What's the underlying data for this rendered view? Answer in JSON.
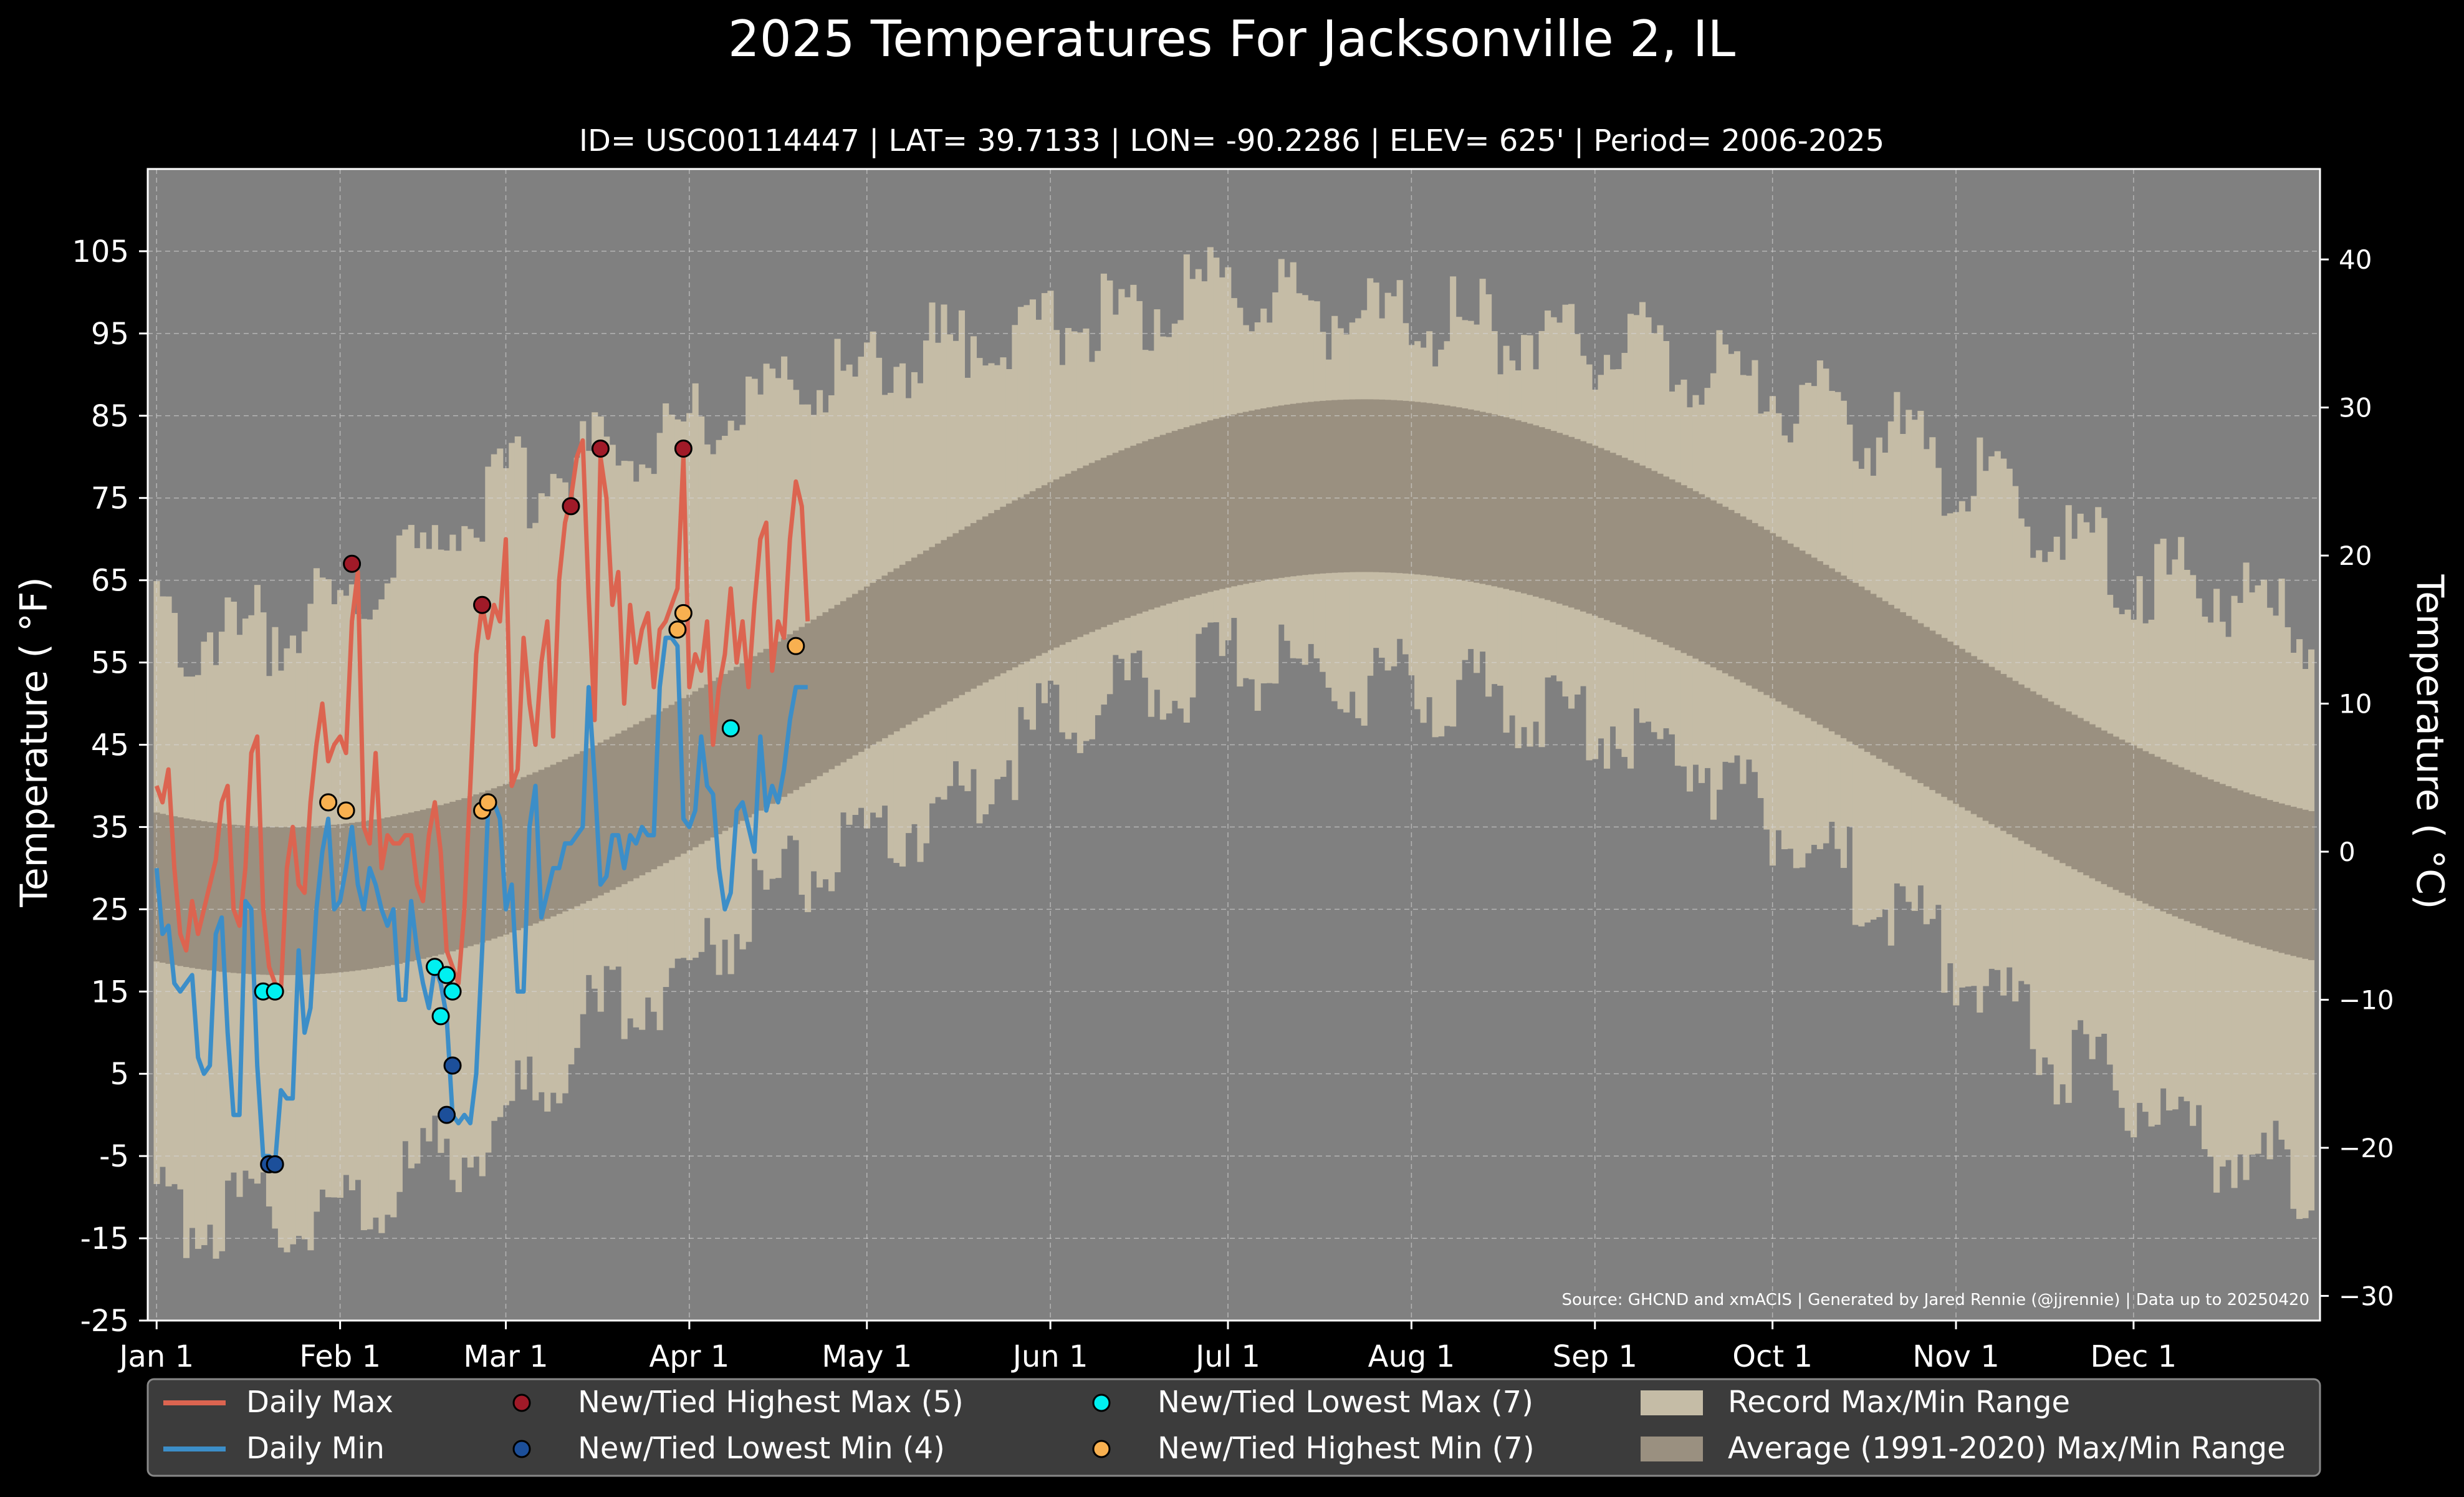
{
  "chart_data": {
    "type": "line",
    "title": "2025 Temperatures For Jacksonville 2, IL",
    "subtitle": "ID= USC00114447 | LAT= 39.7133 | LON= -90.2286 | ELEV= 625' | Period= 2006-2025",
    "ylabel_left": "Temperature ( °F)",
    "ylabel_right": "Temperature ( °C)",
    "ylim_f": [
      -25,
      115
    ],
    "yticks_f": [
      -25,
      -15,
      -5,
      5,
      15,
      25,
      35,
      45,
      55,
      65,
      75,
      85,
      95,
      105
    ],
    "yticks_c": [
      -30,
      -20,
      -10,
      0,
      10,
      20,
      30,
      40
    ],
    "x_ticks": [
      {
        "day": 1,
        "label": "Jan 1"
      },
      {
        "day": 32,
        "label": "Feb 1"
      },
      {
        "day": 60,
        "label": "Mar 1"
      },
      {
        "day": 91,
        "label": "Apr 1"
      },
      {
        "day": 121,
        "label": "May 1"
      },
      {
        "day": 152,
        "label": "Jun 1"
      },
      {
        "day": 182,
        "label": "Jul 1"
      },
      {
        "day": 213,
        "label": "Aug 1"
      },
      {
        "day": 244,
        "label": "Sep 1"
      },
      {
        "day": 274,
        "label": "Oct 1"
      },
      {
        "day": 305,
        "label": "Nov 1"
      },
      {
        "day": 335,
        "label": "Dec 1"
      }
    ],
    "grid": true,
    "source": "Source: GHCND and xmACIS | Generated by Jared Rennie (@jjrennie) | Data up to 20250420",
    "record_range_anchors": {
      "day": [
        1,
        15,
        32,
        50,
        60,
        75,
        91,
        105,
        121,
        140,
        152,
        170,
        182,
        195,
        213,
        230,
        244,
        260,
        274,
        290,
        305,
        320,
        335,
        350,
        365
      ],
      "max": [
        60,
        58,
        62,
        70,
        76,
        80,
        84,
        88,
        90,
        95,
        96,
        98,
        100,
        98,
        96,
        96,
        94,
        92,
        88,
        84,
        78,
        72,
        66,
        64,
        58
      ],
      "min": [
        -12,
        -12,
        -12,
        -5,
        0,
        12,
        18,
        28,
        32,
        40,
        48,
        52,
        55,
        54,
        52,
        50,
        48,
        44,
        36,
        28,
        18,
        8,
        2,
        -4,
        -8
      ]
    },
    "average_range": {
      "max_low": 35,
      "max_high": 87,
      "max_peak_day": 205,
      "min_low": 17,
      "min_high": 66,
      "min_peak_day": 205
    },
    "daily_max": [
      40,
      38,
      42,
      30,
      22,
      20,
      26,
      22,
      25,
      28,
      31,
      38,
      40,
      25,
      23,
      30,
      44,
      46,
      25,
      18,
      16,
      15,
      30,
      35,
      28,
      27,
      38,
      45,
      50,
      43,
      45,
      46,
      44,
      60,
      66,
      35,
      33,
      44,
      30,
      34,
      33,
      33,
      34,
      34,
      28,
      26,
      34,
      38,
      32,
      20,
      18,
      16,
      25,
      40,
      56,
      62,
      58,
      62,
      60,
      70,
      40,
      42,
      58,
      50,
      45,
      55,
      60,
      46,
      65,
      72,
      75,
      80,
      82,
      63,
      48,
      80,
      75,
      62,
      66,
      50,
      62,
      55,
      59,
      61,
      52,
      59,
      60,
      62,
      64,
      80,
      52,
      56,
      54,
      60,
      45,
      52,
      56,
      64,
      55,
      60,
      52,
      62,
      70,
      72,
      54,
      60,
      58,
      70,
      77,
      74,
      60
    ],
    "daily_min": [
      30,
      22,
      23,
      16,
      15,
      16,
      17,
      7,
      5,
      6,
      22,
      24,
      10,
      0,
      0,
      26,
      25,
      6,
      -5,
      -5,
      -6,
      3,
      2,
      2,
      20,
      10,
      13,
      25,
      32,
      36,
      25,
      26,
      30,
      35,
      28,
      25,
      30,
      28,
      25,
      23,
      25,
      14,
      14,
      26,
      20,
      16,
      13,
      18,
      16,
      12,
      0,
      -1,
      0,
      -1,
      5,
      20,
      37,
      38,
      36,
      25,
      28,
      15,
      15,
      35,
      40,
      24,
      27,
      30,
      30,
      33,
      33,
      34,
      35,
      52,
      41,
      28,
      29,
      34,
      34,
      30,
      34,
      33,
      35,
      34,
      34,
      52,
      58,
      58,
      57,
      36,
      35,
      37,
      46,
      40,
      39,
      30,
      25,
      27,
      37,
      38,
      35,
      32,
      46,
      37,
      40,
      38,
      42,
      48,
      52,
      52,
      52
    ],
    "markers": {
      "new_tied_highest_max": {
        "label": "New/Tied Highest Max (5)",
        "points": [
          [
            34,
            67
          ],
          [
            56,
            62
          ],
          [
            71,
            74
          ],
          [
            76,
            81
          ],
          [
            90,
            81
          ]
        ]
      },
      "new_tied_lowest_min": {
        "label": "New/Tied Lowest Min (4)",
        "points": [
          [
            20,
            -6
          ],
          [
            21,
            -6
          ],
          [
            50,
            0
          ],
          [
            51,
            6
          ]
        ]
      },
      "new_tied_lowest_max": {
        "label": "New/Tied Lowest Max (7)",
        "points": [
          [
            19,
            15
          ],
          [
            21,
            15
          ],
          [
            48,
            18
          ],
          [
            49,
            12
          ],
          [
            50,
            17
          ],
          [
            51,
            15
          ],
          [
            98,
            47
          ]
        ]
      },
      "new_tied_highest_min": {
        "label": "New/Tied Highest Min (7)",
        "points": [
          [
            30,
            38
          ],
          [
            33,
            37
          ],
          [
            56,
            37
          ],
          [
            57,
            38
          ],
          [
            89,
            59
          ],
          [
            90,
            61
          ],
          [
            109,
            57
          ]
        ]
      }
    }
  },
  "legend": {
    "daily_max": "Daily Max",
    "daily_min": "Daily Min",
    "highest_max": "New/Tied Highest Max (5)",
    "lowest_min": "New/Tied Lowest Min (4)",
    "lowest_max": "New/Tied Lowest Max (7)",
    "highest_min": "New/Tied Highest Min (7)",
    "record_range": "Record Max/Min Range",
    "average_range": "Average (1991-2020) Max/Min Range"
  },
  "colors": {
    "background": "#000000",
    "plot_bg": "#808080",
    "record_range": "#c5bca6",
    "average_range": "#9a9080",
    "daily_max": "#dc6450",
    "daily_min": "#3c8ec8",
    "highest_max": "#a01a28",
    "lowest_min": "#1c4f9a",
    "lowest_max": "#00f0f0",
    "highest_min": "#f8b050",
    "legend_bg": "#3c3c3c"
  }
}
